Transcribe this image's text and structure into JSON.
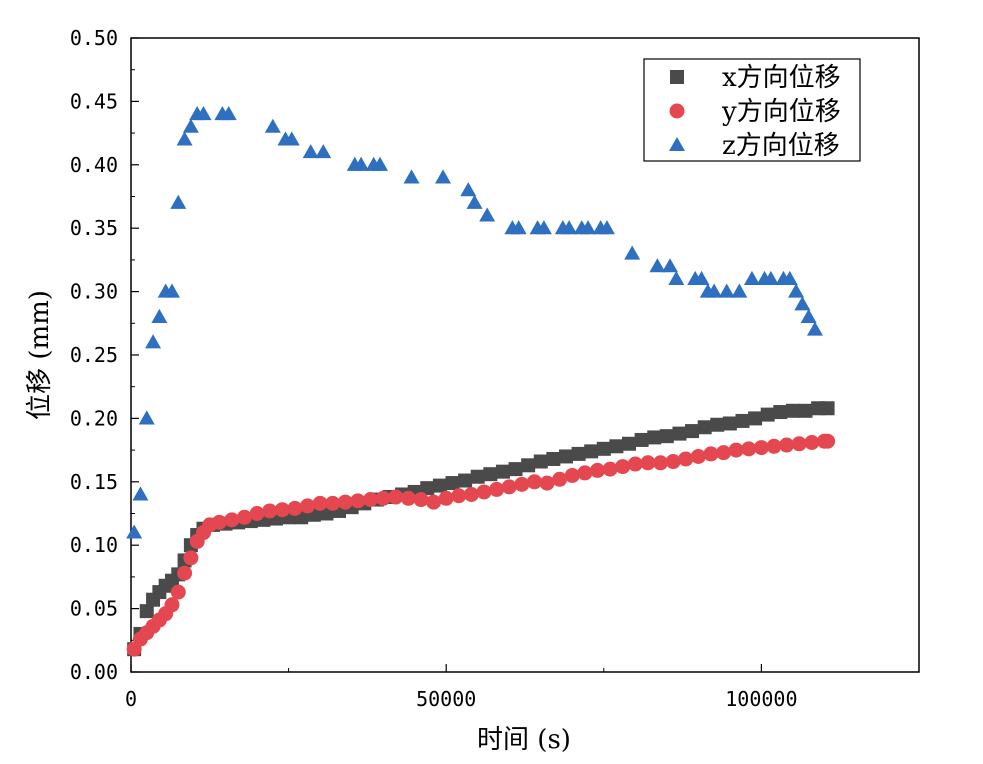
{
  "chart_data": {
    "type": "scatter",
    "title": "",
    "xlabel": "时间 (s)",
    "ylabel": "位移 (mm)",
    "xlim": [
      0,
      125000
    ],
    "ylim": [
      0.0,
      0.5
    ],
    "x_ticks": [
      0,
      50000,
      100000
    ],
    "x_tick_labels": [
      "0",
      "50000",
      "100000"
    ],
    "y_ticks": [
      0.0,
      0.05,
      0.1,
      0.15,
      0.2,
      0.25,
      0.3,
      0.35,
      0.4,
      0.45,
      0.5
    ],
    "y_tick_labels": [
      "0.00",
      "0.05",
      "0.10",
      "0.15",
      "0.20",
      "0.25",
      "0.30",
      "0.35",
      "0.40",
      "0.45",
      "0.50"
    ],
    "grid": false,
    "legend_position": "top-right",
    "series": [
      {
        "name": "x方向位移",
        "marker": "square",
        "color": "#4a4a4a",
        "points": [
          [
            500,
            0.018
          ],
          [
            1500,
            0.03
          ],
          [
            2500,
            0.048
          ],
          [
            3500,
            0.057
          ],
          [
            4500,
            0.063
          ],
          [
            5500,
            0.068
          ],
          [
            6500,
            0.072
          ],
          [
            7500,
            0.077
          ],
          [
            8500,
            0.088
          ],
          [
            9500,
            0.1
          ],
          [
            10500,
            0.108
          ],
          [
            11500,
            0.113
          ],
          [
            13000,
            0.116
          ],
          [
            15000,
            0.117
          ],
          [
            17000,
            0.118
          ],
          [
            19000,
            0.119
          ],
          [
            21000,
            0.12
          ],
          [
            23000,
            0.121
          ],
          [
            25000,
            0.122
          ],
          [
            27000,
            0.122
          ],
          [
            29000,
            0.124
          ],
          [
            31000,
            0.125
          ],
          [
            33000,
            0.127
          ],
          [
            35000,
            0.13
          ],
          [
            37000,
            0.133
          ],
          [
            39000,
            0.136
          ],
          [
            41000,
            0.138
          ],
          [
            43000,
            0.14
          ],
          [
            45000,
            0.142
          ],
          [
            47000,
            0.145
          ],
          [
            49000,
            0.147
          ],
          [
            51000,
            0.149
          ],
          [
            53000,
            0.151
          ],
          [
            55000,
            0.154
          ],
          [
            57000,
            0.156
          ],
          [
            59000,
            0.158
          ],
          [
            61000,
            0.16
          ],
          [
            63000,
            0.163
          ],
          [
            65000,
            0.166
          ],
          [
            67000,
            0.168
          ],
          [
            69000,
            0.17
          ],
          [
            71000,
            0.172
          ],
          [
            73000,
            0.174
          ],
          [
            75000,
            0.176
          ],
          [
            77000,
            0.178
          ],
          [
            79000,
            0.18
          ],
          [
            81000,
            0.183
          ],
          [
            83000,
            0.185
          ],
          [
            85000,
            0.186
          ],
          [
            87000,
            0.188
          ],
          [
            89000,
            0.19
          ],
          [
            91000,
            0.193
          ],
          [
            93000,
            0.195
          ],
          [
            95000,
            0.196
          ],
          [
            97000,
            0.198
          ],
          [
            99000,
            0.2
          ],
          [
            101000,
            0.203
          ],
          [
            103000,
            0.205
          ],
          [
            105000,
            0.206
          ],
          [
            107000,
            0.206
          ],
          [
            109000,
            0.208
          ],
          [
            110500,
            0.208
          ]
        ]
      },
      {
        "name": "y方向位移",
        "marker": "circle",
        "color": "#e4474f",
        "points": [
          [
            500,
            0.018
          ],
          [
            1500,
            0.026
          ],
          [
            2500,
            0.031
          ],
          [
            3500,
            0.036
          ],
          [
            4500,
            0.041
          ],
          [
            5500,
            0.046
          ],
          [
            6500,
            0.053
          ],
          [
            7500,
            0.063
          ],
          [
            8500,
            0.078
          ],
          [
            9500,
            0.09
          ],
          [
            10500,
            0.103
          ],
          [
            11500,
            0.11
          ],
          [
            12500,
            0.116
          ],
          [
            14000,
            0.118
          ],
          [
            16000,
            0.12
          ],
          [
            18000,
            0.122
          ],
          [
            20000,
            0.125
          ],
          [
            22000,
            0.127
          ],
          [
            24000,
            0.128
          ],
          [
            26000,
            0.129
          ],
          [
            28000,
            0.131
          ],
          [
            30000,
            0.133
          ],
          [
            32000,
            0.133
          ],
          [
            34000,
            0.134
          ],
          [
            36000,
            0.135
          ],
          [
            38000,
            0.136
          ],
          [
            40000,
            0.137
          ],
          [
            42000,
            0.138
          ],
          [
            44000,
            0.137
          ],
          [
            46000,
            0.136
          ],
          [
            48000,
            0.134
          ],
          [
            50000,
            0.137
          ],
          [
            52000,
            0.139
          ],
          [
            54000,
            0.14
          ],
          [
            56000,
            0.142
          ],
          [
            58000,
            0.144
          ],
          [
            60000,
            0.146
          ],
          [
            62000,
            0.148
          ],
          [
            64000,
            0.15
          ],
          [
            66000,
            0.149
          ],
          [
            68000,
            0.152
          ],
          [
            70000,
            0.155
          ],
          [
            72000,
            0.157
          ],
          [
            74000,
            0.159
          ],
          [
            76000,
            0.16
          ],
          [
            78000,
            0.162
          ],
          [
            80000,
            0.164
          ],
          [
            82000,
            0.165
          ],
          [
            84000,
            0.165
          ],
          [
            86000,
            0.166
          ],
          [
            88000,
            0.168
          ],
          [
            90000,
            0.17
          ],
          [
            92000,
            0.172
          ],
          [
            94000,
            0.173
          ],
          [
            96000,
            0.175
          ],
          [
            98000,
            0.176
          ],
          [
            100000,
            0.177
          ],
          [
            102000,
            0.178
          ],
          [
            104000,
            0.179
          ],
          [
            106000,
            0.18
          ],
          [
            108000,
            0.181
          ],
          [
            110000,
            0.182
          ],
          [
            110500,
            0.182
          ]
        ]
      },
      {
        "name": "z方向位移",
        "marker": "triangle",
        "color": "#2f6fbf",
        "points": [
          [
            500,
            0.11
          ],
          [
            1500,
            0.14
          ],
          [
            2500,
            0.2
          ],
          [
            3500,
            0.26
          ],
          [
            4500,
            0.28
          ],
          [
            5500,
            0.3
          ],
          [
            6500,
            0.3
          ],
          [
            7500,
            0.37
          ],
          [
            8500,
            0.42
          ],
          [
            9500,
            0.43
          ],
          [
            10500,
            0.44
          ],
          [
            11500,
            0.44
          ],
          [
            14500,
            0.44
          ],
          [
            15500,
            0.44
          ],
          [
            22500,
            0.43
          ],
          [
            24500,
            0.42
          ],
          [
            25500,
            0.42
          ],
          [
            28500,
            0.41
          ],
          [
            30500,
            0.41
          ],
          [
            35500,
            0.4
          ],
          [
            36500,
            0.4
          ],
          [
            38500,
            0.4
          ],
          [
            39500,
            0.4
          ],
          [
            44500,
            0.39
          ],
          [
            49500,
            0.39
          ],
          [
            53500,
            0.38
          ],
          [
            54500,
            0.37
          ],
          [
            56500,
            0.36
          ],
          [
            60500,
            0.35
          ],
          [
            61500,
            0.35
          ],
          [
            64500,
            0.35
          ],
          [
            65500,
            0.35
          ],
          [
            68500,
            0.35
          ],
          [
            69500,
            0.35
          ],
          [
            71500,
            0.35
          ],
          [
            72500,
            0.35
          ],
          [
            74500,
            0.35
          ],
          [
            75500,
            0.35
          ],
          [
            79500,
            0.33
          ],
          [
            83500,
            0.32
          ],
          [
            85500,
            0.32
          ],
          [
            86500,
            0.31
          ],
          [
            89500,
            0.31
          ],
          [
            90500,
            0.31
          ],
          [
            91500,
            0.3
          ],
          [
            92500,
            0.3
          ],
          [
            94500,
            0.3
          ],
          [
            96500,
            0.3
          ],
          [
            98500,
            0.31
          ],
          [
            100500,
            0.31
          ],
          [
            101500,
            0.31
          ],
          [
            103500,
            0.31
          ],
          [
            104500,
            0.31
          ],
          [
            105500,
            0.3
          ],
          [
            106500,
            0.29
          ],
          [
            107500,
            0.28
          ],
          [
            108500,
            0.27
          ]
        ]
      }
    ]
  }
}
